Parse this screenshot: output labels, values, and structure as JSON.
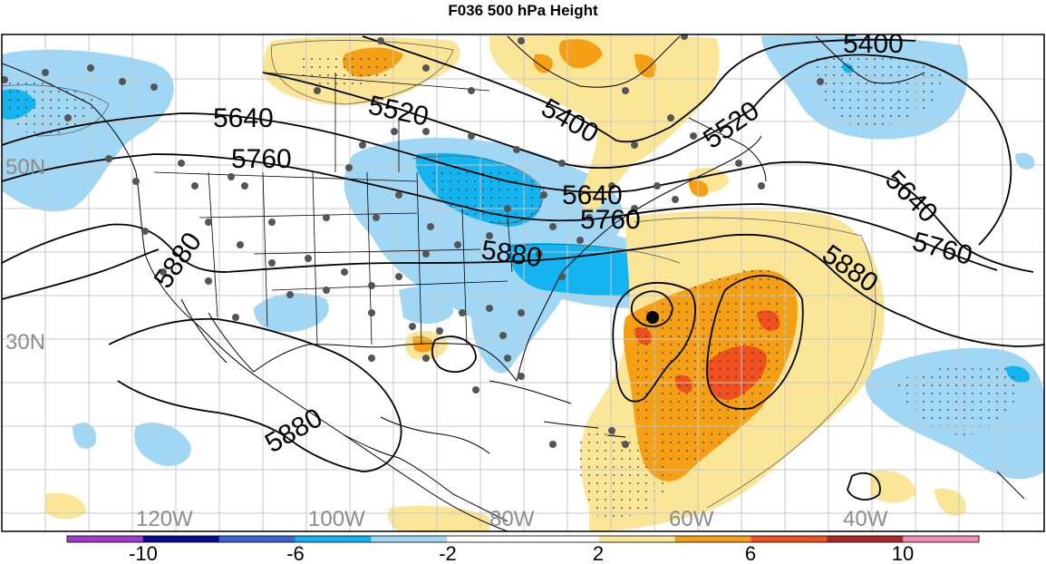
{
  "title": "F036 500 hPa Height",
  "lat_labels": [
    "50N",
    "30N"
  ],
  "lon_labels": [
    "120W",
    "100W",
    "80W",
    "60W",
    "40W"
  ],
  "contour_labels": [
    "5400",
    "5520",
    "5640",
    "5760",
    "5880"
  ],
  "colorbar": {
    "tick_labels": [
      "-10",
      "-6",
      "-2",
      "2",
      "6",
      "10"
    ],
    "colors": [
      "#a03cc8",
      "#0a0a8c",
      "#3c64d2",
      "#14b4f0",
      "#a0d7f5",
      "#ffffff",
      "#ffffff",
      "#fae696",
      "#f5a014",
      "#f0501e",
      "#aa2828",
      "#f08cb4"
    ]
  },
  "colors": {
    "light_blue": "#a0d7f5",
    "blue": "#14b4f0",
    "dark_blue": "#3c64d2",
    "light_yellow": "#fae696",
    "orange": "#f5a014",
    "red_orange": "#f0501e"
  }
}
